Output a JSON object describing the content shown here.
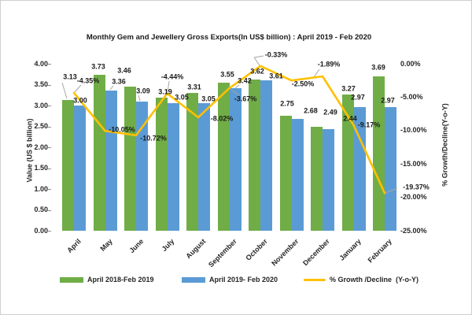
{
  "chart_data": {
    "type": "bar",
    "title": "Monthly Gem and Jewellery Gross Exports(In US$ billion) : April 2019 - Feb 2020",
    "categories": [
      "April",
      "May",
      "June",
      "July",
      "August",
      "September",
      "October",
      "November",
      "December",
      "January",
      "February"
    ],
    "series": [
      {
        "name": "April 2018-Feb 2019",
        "chart": "column",
        "color": "#70AD47",
        "values": [
          3.13,
          3.73,
          3.46,
          3.19,
          3.31,
          3.55,
          3.62,
          2.75,
          2.49,
          3.27,
          3.69
        ]
      },
      {
        "name": "April 2019- Feb 2020",
        "chart": "column",
        "color": "#5B9BD5",
        "values": [
          3.0,
          3.36,
          3.09,
          3.05,
          3.05,
          3.42,
          3.61,
          2.68,
          2.44,
          2.97,
          2.97
        ]
      },
      {
        "name": "% Growth /Decline  (Y-o-Y)",
        "chart": "line",
        "color": "#FFC000",
        "values": [
          -4.35,
          -10.05,
          -10.72,
          -4.44,
          -8.02,
          -3.67,
          -0.33,
          -2.5,
          -1.89,
          -9.17,
          -19.37
        ]
      }
    ],
    "left_axis": {
      "title": "Value (US $ billion)",
      "ticks": [
        "4.00",
        "3.50",
        "3.00",
        "2.50",
        "2.00",
        "1.50",
        "1.00",
        "0.50",
        "0.00"
      ],
      "min": 0,
      "max": 4
    },
    "right_axis": {
      "title": "% Growth/Decline(Y-o-Y)",
      "ticks": [
        "0.00%",
        "-5.00%",
        "-10.00%",
        "-15.00%",
        "-20.00%",
        "-25.00%"
      ],
      "min": -25,
      "max": 0
    },
    "grid": "off",
    "legend_position": "bottom",
    "leader_line_color": "#A6A6A6"
  }
}
